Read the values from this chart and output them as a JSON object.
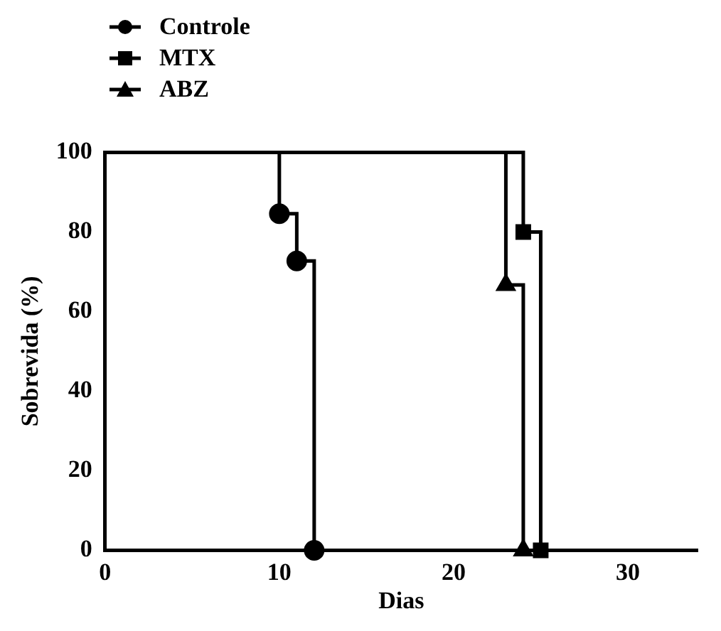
{
  "chart_data": {
    "type": "step",
    "xlabel": "Dias",
    "ylabel": "Sobrevida (%)",
    "xlim": [
      0,
      34
    ],
    "ylim": [
      0,
      100
    ],
    "xticks": [
      0,
      10,
      20,
      30
    ],
    "yticks": [
      0,
      20,
      40,
      60,
      80,
      100
    ],
    "grid": false,
    "legend": "top left",
    "series": [
      {
        "name": "Controle",
        "color": "#000000",
        "marker": "circle",
        "x": [
          0,
          10,
          11,
          12
        ],
        "values": [
          100,
          84.6,
          72.7,
          0
        ]
      },
      {
        "name": "MTX",
        "color": "#000000",
        "marker": "square",
        "x": [
          0,
          24,
          25
        ],
        "values": [
          100,
          80,
          0
        ]
      },
      {
        "name": "ABZ",
        "color": "#000000",
        "marker": "triangle",
        "x": [
          0,
          23,
          24
        ],
        "values": [
          100,
          66.7,
          0
        ]
      }
    ]
  }
}
